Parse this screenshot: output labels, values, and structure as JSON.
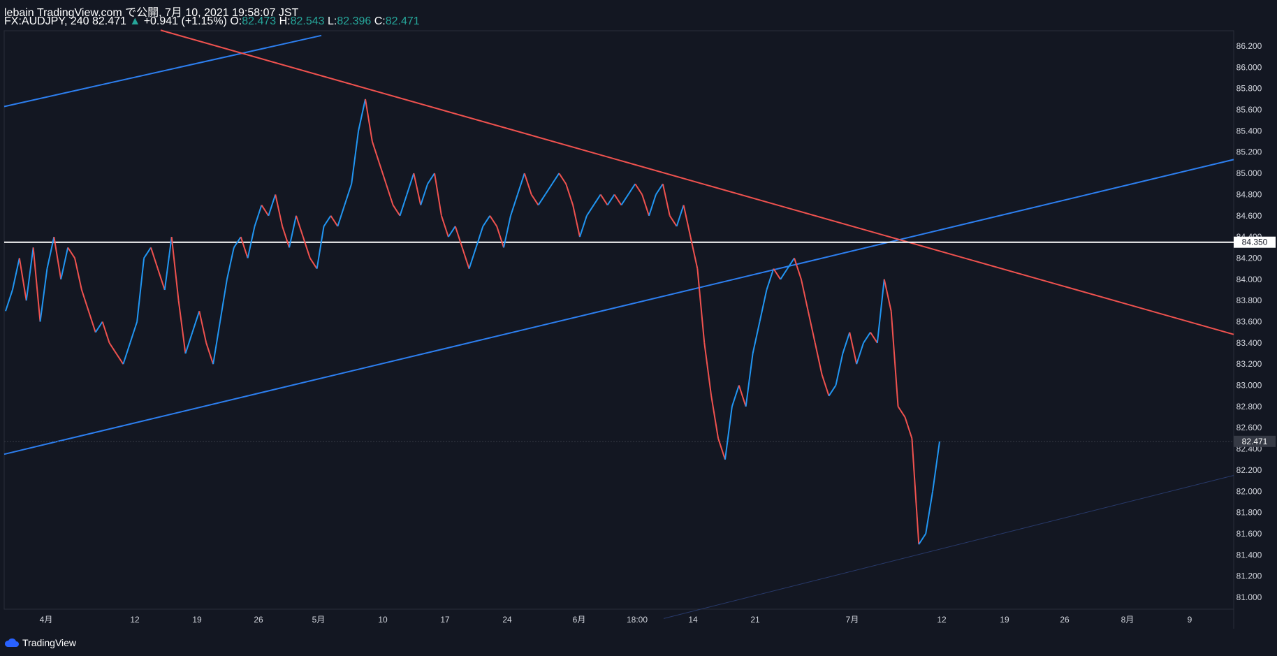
{
  "header": {
    "published": "lebain TradingView.com で公開, 7月 10, 2021 19:58:07 JST",
    "symbol": "FX:AUDJPY, 240",
    "last": "82.471",
    "change_arrow": "▲",
    "change": "+0.941 (+1.15%)",
    "open_label": "O:",
    "open": "82.473",
    "high_label": "H:",
    "high": "82.543",
    "low_label": "L:",
    "low": "82.396",
    "close_label": "C:",
    "close": "82.471"
  },
  "footer": {
    "brand": "TradingView"
  },
  "colors": {
    "background": "#131722",
    "up": "#2196f3",
    "down": "#f0524f",
    "trendline_red": "#f0524f",
    "trendline_blue": "#2d7ff0",
    "horizontal": "#ffffff",
    "axis_text": "#d1d4dc"
  },
  "chart_data": {
    "type": "line",
    "ylim": [
      80.8,
      86.35
    ],
    "y_ticks": [
      "86.200",
      "86.000",
      "85.800",
      "85.600",
      "85.400",
      "85.200",
      "85.000",
      "84.800",
      "84.600",
      "84.400",
      "84.200",
      "84.000",
      "83.800",
      "83.600",
      "83.400",
      "83.200",
      "83.000",
      "82.800",
      "82.600",
      "82.400",
      "82.200",
      "82.000",
      "81.800",
      "81.600",
      "81.400",
      "81.200",
      "81.000"
    ],
    "x_ticks": [
      "4月",
      "12",
      "19",
      "26",
      "5月",
      "10",
      "17",
      "24",
      "6月",
      "18:00",
      "14",
      "21",
      "7月",
      "12",
      "19",
      "26",
      "8月",
      "9"
    ],
    "price_labels": {
      "horizontal": "84.350",
      "current": "82.471"
    },
    "horizontal_level": 84.35,
    "current_price": 82.471,
    "series": [
      {
        "values": [
          83.7,
          83.9,
          84.2,
          83.8,
          84.3,
          83.6,
          84.1,
          84.4,
          84.0,
          84.3,
          84.2,
          83.9,
          83.7,
          83.5,
          83.6,
          83.4,
          83.3,
          83.2,
          83.4,
          83.6,
          84.2,
          84.3,
          84.1,
          83.9,
          84.4,
          83.8,
          83.3,
          83.5,
          83.7,
          83.4,
          83.2,
          83.6,
          84.0,
          84.3,
          84.4,
          84.2,
          84.5,
          84.7,
          84.6,
          84.8,
          84.5,
          84.3,
          84.6,
          84.4,
          84.2,
          84.1,
          84.5,
          84.6,
          84.5,
          84.7,
          84.9,
          85.4,
          85.7,
          85.3,
          85.1,
          84.9,
          84.7,
          84.6,
          84.8,
          85.0,
          84.7,
          84.9,
          85.0,
          84.6,
          84.4,
          84.5,
          84.3,
          84.1,
          84.3,
          84.5,
          84.6,
          84.5,
          84.3,
          84.6,
          84.8,
          85.0,
          84.8,
          84.7,
          84.8,
          84.9,
          85.0,
          84.9,
          84.7,
          84.4,
          84.6,
          84.7,
          84.8,
          84.7,
          84.8,
          84.7,
          84.8,
          84.9,
          84.8,
          84.6,
          84.8,
          84.9,
          84.6,
          84.5,
          84.7,
          84.4,
          84.1,
          83.4,
          82.9,
          82.5,
          82.3,
          82.8,
          83.0,
          82.8,
          83.3,
          83.6,
          83.9,
          84.1,
          84.0,
          84.1,
          84.2,
          84.0,
          83.7,
          83.4,
          83.1,
          82.9,
          83.0,
          83.3,
          83.5,
          83.2,
          83.4,
          83.5,
          83.4,
          84.0,
          83.7,
          82.8,
          82.7,
          82.5,
          81.5,
          81.6,
          82.0,
          82.47
        ]
      }
    ]
  }
}
